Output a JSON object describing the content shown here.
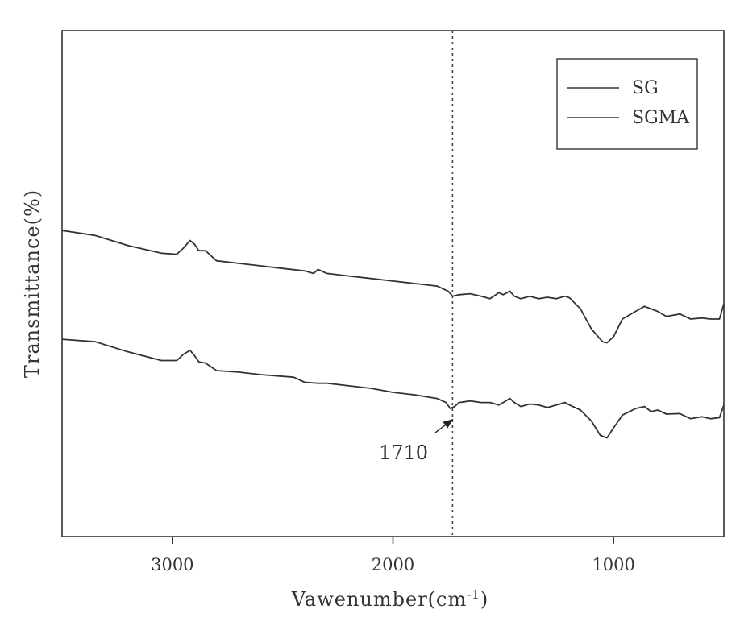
{
  "chart_data": {
    "type": "line",
    "title": "",
    "xlabel": "Vawenumber(cm",
    "xlabel_sup": "-1",
    "xlabel_close": ")",
    "ylabel": "Transmittance(%)",
    "xlim": [
      3500,
      500
    ],
    "ylim": [
      0,
      100
    ],
    "x_ticks": [
      3000,
      2000,
      1000
    ],
    "x_tick_labels": [
      "3000",
      "2000",
      "1000"
    ],
    "y_ticks_shown": false,
    "legend": {
      "position": "top-right",
      "entries": [
        "SG",
        "SGMA"
      ]
    },
    "reference_line": {
      "x": 1730,
      "style": "dotted"
    },
    "annotations": [
      {
        "text": "1710",
        "x": 1750,
        "y": 24
      }
    ],
    "series": [
      {
        "name": "SG",
        "x": [
          3500,
          3350,
          3200,
          3050,
          2980,
          2950,
          2920,
          2900,
          2880,
          2850,
          2800,
          2700,
          2600,
          2500,
          2400,
          2360,
          2340,
          2300,
          2200,
          2100,
          2000,
          1900,
          1800,
          1750,
          1730,
          1700,
          1650,
          1600,
          1560,
          1520,
          1500,
          1470,
          1450,
          1420,
          1380,
          1340,
          1300,
          1260,
          1220,
          1200,
          1150,
          1100,
          1050,
          1030,
          1000,
          960,
          900,
          860,
          830,
          800,
          760,
          700,
          650,
          600,
          560,
          520,
          500
        ],
        "values": [
          60.5,
          59.5,
          57.5,
          56,
          55.8,
          57,
          58.5,
          57.8,
          56.5,
          56.5,
          54.5,
          54,
          53.5,
          53,
          52.5,
          52,
          52.8,
          52,
          51.5,
          51,
          50.5,
          50,
          49.5,
          48.5,
          47.5,
          47.8,
          48,
          47.5,
          47,
          48.2,
          47.8,
          48.5,
          47.5,
          47,
          47.5,
          47,
          47.3,
          47,
          47.5,
          47.2,
          45,
          41,
          38.5,
          38.3,
          39.5,
          43,
          44.5,
          45.5,
          45,
          44.5,
          43.5,
          44,
          43,
          43.2,
          43,
          43,
          46
        ]
      },
      {
        "name": "SGMA",
        "x": [
          3500,
          3350,
          3200,
          3050,
          2980,
          2950,
          2920,
          2900,
          2880,
          2850,
          2800,
          2700,
          2600,
          2450,
          2400,
          2340,
          2300,
          2200,
          2100,
          2000,
          1900,
          1800,
          1760,
          1740,
          1720,
          1700,
          1650,
          1600,
          1560,
          1520,
          1500,
          1470,
          1450,
          1420,
          1380,
          1340,
          1300,
          1260,
          1220,
          1200,
          1150,
          1100,
          1060,
          1030,
          1000,
          960,
          900,
          860,
          830,
          800,
          760,
          700,
          650,
          600,
          560,
          520,
          500
        ],
        "values": [
          39,
          38.5,
          36.5,
          34.8,
          34.8,
          36,
          36.8,
          35.8,
          34.5,
          34.3,
          32.8,
          32.5,
          32,
          31.5,
          30.5,
          30.3,
          30.3,
          29.8,
          29.3,
          28.5,
          28,
          27.3,
          26.5,
          25.3,
          25.7,
          26.5,
          26.8,
          26.5,
          26.5,
          26,
          26.5,
          27.3,
          26.5,
          25.7,
          26.2,
          26,
          25.5,
          26,
          26.5,
          26,
          25,
          22.8,
          20,
          19.5,
          21.5,
          24,
          25.3,
          25.7,
          24.7,
          25,
          24.2,
          24.3,
          23.3,
          23.7,
          23.3,
          23.5,
          26
        ]
      }
    ]
  }
}
